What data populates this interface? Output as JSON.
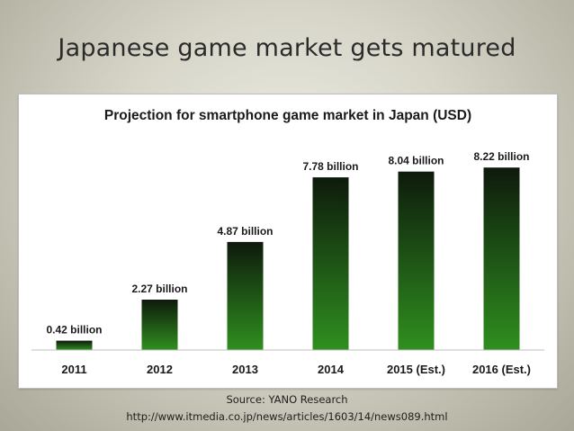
{
  "slide": {
    "title": "Japanese game market gets matured"
  },
  "chart_data": {
    "type": "bar",
    "title": "Projection for smartphone game market in Japan (USD)",
    "categories": [
      "2011",
      "2012",
      "2013",
      "2014",
      "2015 (Est.)",
      "2016 (Est.)"
    ],
    "values": [
      0.42,
      2.27,
      4.87,
      7.78,
      8.04,
      8.22
    ],
    "data_labels": [
      "0.42 billion",
      "2.27 billion",
      "4.87 billion",
      "7.78 billion",
      "8.04 billion",
      "8.22 billion"
    ],
    "xlabel": "",
    "ylabel": "",
    "ylim": [
      0,
      9
    ],
    "grid": false,
    "legend": "none",
    "colors": {
      "bar_bottom": "#2f8f1f",
      "bar_top": "#0e1a0c",
      "baseline": "#bfbfbf"
    }
  },
  "source": {
    "line1": "Source:  YANO Research",
    "line2": "http://www.itmedia.co.jp/news/articles/1603/14/news089.html"
  }
}
